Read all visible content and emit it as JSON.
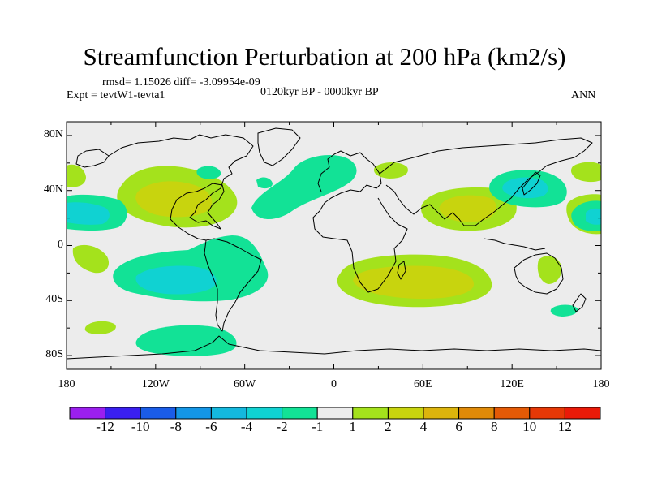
{
  "title": "Streamfunction Perturbation at 200 hPa (km2/s)",
  "stats": "rmsd= 1.15026 diff= -3.09954e-09",
  "experiment": "Expt = tevtW1-tevta1",
  "period": "0120kyr BP - 0000kyr BP",
  "season": "ANN",
  "lat_labels": [
    "80N",
    "40N",
    "0",
    "40S",
    "80S"
  ],
  "lon_labels": [
    "180",
    "120W",
    "60W",
    "0",
    "60E",
    "120E",
    "180"
  ],
  "colorbar": {
    "labels": [
      "-12",
      "-10",
      "-8",
      "-6",
      "-4",
      "-2",
      "-1",
      "1",
      "2",
      "4",
      "6",
      "8",
      "10",
      "12"
    ],
    "colors": [
      "#9b1fef",
      "#3a1ff0",
      "#1a5ce8",
      "#1496e6",
      "#14b8de",
      "#10d2d2",
      "#12e296",
      "#ececec",
      "#a4e21c",
      "#c8d40e",
      "#dcb40c",
      "#e08a08",
      "#e45a06",
      "#e63806",
      "#ea1a08"
    ]
  },
  "colors": {
    "background": "#ececec",
    "coast": "#000000"
  }
}
